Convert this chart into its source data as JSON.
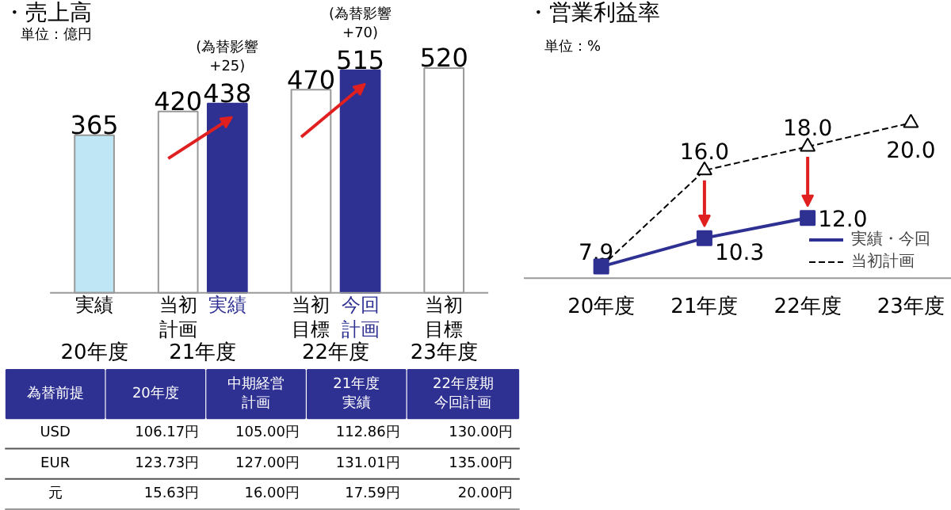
{
  "chart_data": [
    {
      "type": "bar",
      "title": "・売上高",
      "subtitle": "単位：億円",
      "categories": [
        "実績",
        "当初計画",
        "実績",
        "当初目標",
        "今回計画",
        "当初目標"
      ],
      "values": [
        365,
        420,
        438,
        470,
        515,
        520
      ],
      "colors": [
        "#bfe6f5",
        "#ffffff",
        "#2e3192",
        "#ffffff",
        "#2e3192",
        "#ffffff"
      ],
      "data_labels": true,
      "annotations": [
        "20年度",
        "21年度",
        "22年度",
        "23年度",
        "(為替影響+25)",
        "(為替影響+70)"
      ]
    },
    {
      "type": "line",
      "title": "・営業利益率",
      "subtitle": "単位：%",
      "categories": [
        "20年度",
        "21年度",
        "22年度",
        "23年度"
      ],
      "series": [
        {
          "name": "実績・今回",
          "color": "#2e3192",
          "values": [
            7.9,
            10.3,
            12.0,
            null
          ],
          "value_labels": [
            null,
            "10.3",
            "12.0",
            null
          ],
          "marker": "square",
          "line_style": "solid"
        },
        {
          "name": "当初計画",
          "color": "#000000",
          "values": [
            7.9,
            16.0,
            18.0,
            20.0
          ],
          "value_labels": [
            "7.9",
            "16.0",
            "18.0",
            "20.0"
          ],
          "marker": "triangle",
          "line_style": "dashed"
        }
      ],
      "legend": "bottom right"
    },
    {
      "type": "heatmap",
      "title": "為替前提",
      "categories": [
        "20年度",
        "中期経営計画",
        "21年度実績",
        "22年度期今回計画"
      ],
      "y_categories": [
        "USD",
        "EUR",
        "元"
      ],
      "cells": [
        [
          106.17,
          105.0,
          112.86,
          130.0
        ],
        [
          123.73,
          127.0,
          131.01,
          135.0
        ],
        [
          15.63,
          16.0,
          17.59,
          20.0
        ]
      ],
      "cell_labels": [
        [
          "106.17円",
          "105.00円",
          "112.86円",
          "130.00円"
        ],
        [
          "123.73円",
          "127.00円",
          "131.01円",
          "135.00円"
        ],
        [
          "15.63円",
          "16.00円",
          "17.59円",
          "20.00円"
        ]
      ]
    }
  ]
}
